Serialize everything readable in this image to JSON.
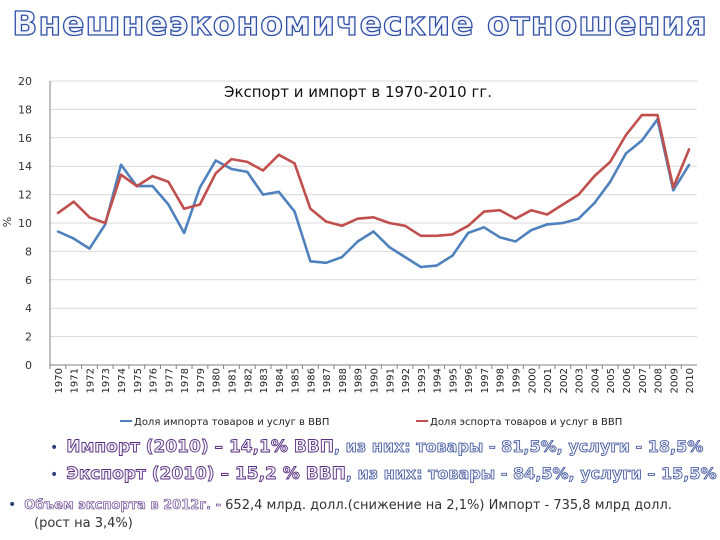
{
  "slide_title": "Внешнеэкономические отношения",
  "bullets": [
    {
      "lead": "Импорт (2010) – 14,1% ВВП",
      "tail": ", из них: товары - 81,5%, услуги - 18,5%"
    },
    {
      "lead": "Экспорт (2010) – 15,2 % ВВП",
      "tail": ", из них: товары - 84,5%, услуги – 15,5%"
    },
    {
      "lead": "Объем экспорта в 2012г. -",
      "tail": " 652,4 млрд. долл.(снижение на 2,1%) Импорт - 735,8 млрд долл.",
      "tail2": "(рост на 3,4%)"
    }
  ],
  "colors": {
    "import": "#4f81bd",
    "export": "#c0504d",
    "grid": "#d9d9d9",
    "axis": "#808080"
  },
  "chart_data": {
    "type": "line",
    "title": "Экспорт и импорт в 1970-2010 гг.",
    "ylabel": "%",
    "xlabel": "",
    "ylim": [
      0,
      20
    ],
    "yticks": [
      0,
      2,
      4,
      6,
      8,
      10,
      12,
      14,
      16,
      18,
      20
    ],
    "grid": true,
    "legend": "bottom",
    "categories": [
      "1970",
      "1971",
      "1972",
      "1973",
      "1974",
      "1975",
      "1976",
      "1977",
      "1978",
      "1979",
      "1980",
      "1981",
      "1982",
      "1983",
      "1984",
      "1985",
      "1986",
      "1987",
      "1988",
      "1989",
      "1990",
      "1991",
      "1992",
      "1993",
      "1994",
      "1995",
      "1996",
      "1997",
      "1998",
      "1999",
      "2000",
      "2001",
      "2002",
      "2003",
      "2004",
      "2005",
      "2006",
      "2007",
      "2008",
      "2009",
      "2010"
    ],
    "series": [
      {
        "name": "Доля импорта товаров и услуг в ВВП",
        "color": "#4f81bd",
        "values": [
          9.4,
          8.9,
          8.2,
          9.9,
          14.1,
          12.6,
          12.6,
          11.3,
          9.3,
          12.5,
          14.4,
          13.8,
          13.6,
          12.0,
          12.2,
          10.8,
          7.3,
          7.2,
          7.6,
          8.7,
          9.4,
          8.3,
          7.6,
          6.9,
          7.0,
          7.7,
          9.3,
          9.7,
          9.0,
          8.7,
          9.5,
          9.9,
          10.0,
          10.3,
          11.4,
          12.9,
          14.9,
          15.8,
          17.3,
          12.3,
          14.1
        ]
      },
      {
        "name": "Доля эспорта товаров и услуг в ВВП",
        "color": "#c0504d",
        "values": [
          10.7,
          11.5,
          10.4,
          10.0,
          13.4,
          12.6,
          13.3,
          12.9,
          11.0,
          11.3,
          13.5,
          14.5,
          14.3,
          13.7,
          14.8,
          14.2,
          11.0,
          10.1,
          9.8,
          10.3,
          10.4,
          10.0,
          9.8,
          9.1,
          9.1,
          9.2,
          9.8,
          10.8,
          10.9,
          10.3,
          10.9,
          10.6,
          11.3,
          12.0,
          13.3,
          14.3,
          16.2,
          17.6,
          17.6,
          12.5,
          15.2
        ]
      }
    ]
  }
}
